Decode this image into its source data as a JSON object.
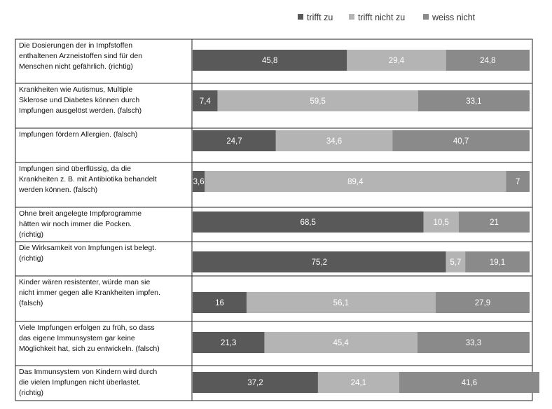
{
  "chart_data": {
    "type": "bar",
    "stacked": true,
    "orientation": "horizontal",
    "percent_scale": [
      0,
      100
    ],
    "legend_position": "top-right",
    "series": [
      {
        "name": "trifft zu",
        "color": "#595959",
        "values": [
          45.8,
          7.4,
          24.7,
          3.6,
          68.5,
          75.2,
          16,
          21.3,
          37.2
        ]
      },
      {
        "name": "trifft nicht zu",
        "color": "#b4b4b4",
        "values": [
          29.4,
          59.5,
          34.6,
          89.4,
          10.5,
          5.7,
          56.1,
          45.4,
          24.1
        ]
      },
      {
        "name": "weiss nicht",
        "color": "#8a8a8a",
        "values": [
          24.8,
          33.1,
          40.7,
          7,
          21,
          19.1,
          27.9,
          33.3,
          41.6
        ]
      }
    ],
    "categories": [
      [
        "Die Dosierungen der in Impfstoffen",
        "enthaltenen Arzneistoffen sind für den",
        "Menschen nicht gefährlich. (richtig)"
      ],
      [
        "Krankheiten wie Autismus, Multiple",
        "Sklerose und Diabetes können durch",
        "Impfungen ausgelöst werden. (falsch)"
      ],
      [
        "Impfungen fördern Allergien. (falsch)"
      ],
      [
        "Impfungen sind überflüssig, da die",
        "Krankheiten z. B. mit Antibiotika behandelt",
        "werden können. (falsch)"
      ],
      [
        "Ohne breit angelegte Impfprogramme",
        "hätten wir noch immer die Pocken.",
        " (richtig)"
      ],
      [
        "Die Wirksamkeit von Impfungen ist belegt.",
        "(richtig)"
      ],
      [
        "Kinder wären resistenter, würde man sie",
        "nicht immer gegen alle Krankheiten impfen.",
        "(falsch)"
      ],
      [
        "Viele Impfungen erfolgen zu früh, so dass",
        "das eigene Immunsystem gar keine",
        "Möglichkeit hat, sich zu entwickeln. (falsch)"
      ],
      [
        "Das Immunsystem von Kindern wird durch",
        "die vielen Impfungen nicht überlastet.",
        "(richtig)"
      ]
    ]
  }
}
